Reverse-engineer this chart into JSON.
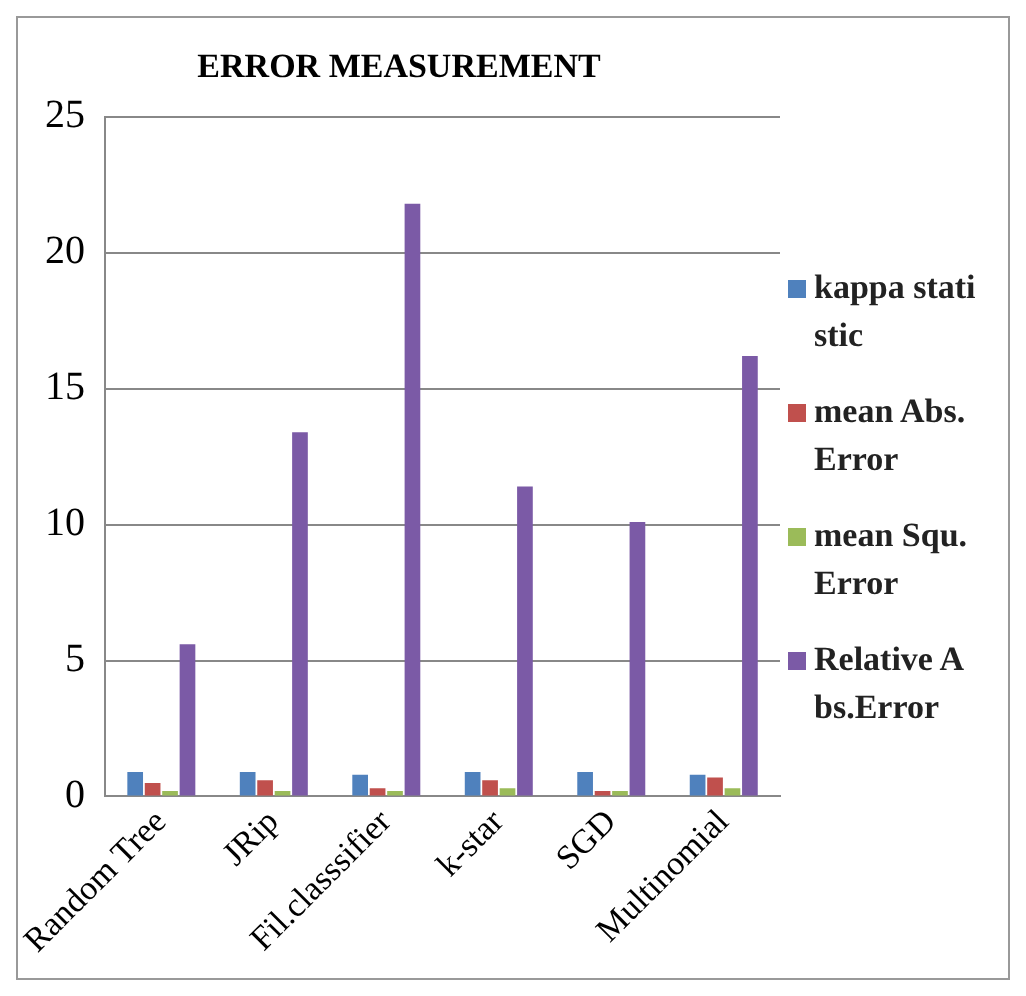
{
  "chart_data": {
    "type": "bar",
    "title": "ERROR MEASUREMENT",
    "categories": [
      "Random Tree",
      "JRip",
      "Fil.classsifier",
      "k-star",
      "SGD",
      "Multinomial"
    ],
    "series": [
      {
        "name": "kappa statistic",
        "color": "#4f81bd",
        "values": [
          0.9,
          0.9,
          0.8,
          0.9,
          0.9,
          0.8
        ]
      },
      {
        "name": "mean Abs.Error",
        "color": "#c0504d",
        "values": [
          0.5,
          0.6,
          0.3,
          0.6,
          0.2,
          0.7
        ]
      },
      {
        "name": "mean Squ.Error",
        "color": "#9bbb59",
        "values": [
          0.2,
          0.2,
          0.2,
          0.3,
          0.2,
          0.3
        ]
      },
      {
        "name": "Relative Abs.Error",
        "color": "#7b5aa6",
        "values": [
          5.6,
          13.4,
          21.8,
          11.4,
          10.1,
          16.2
        ]
      }
    ],
    "ylim": [
      0,
      25
    ],
    "yticks": [
      0,
      5,
      10,
      15,
      20,
      25
    ],
    "grid": "y",
    "legend": "right"
  }
}
